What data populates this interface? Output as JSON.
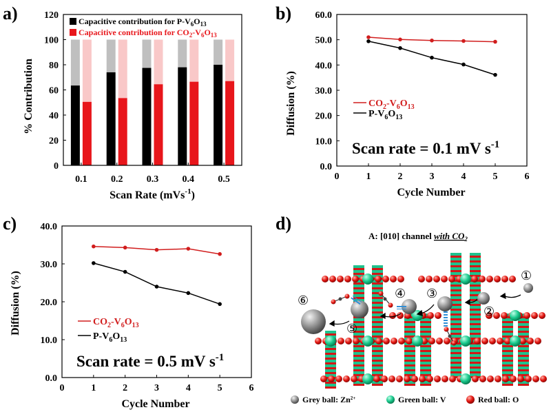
{
  "panels": {
    "a": "a)",
    "b": "b)",
    "c": "c)",
    "d": "d)"
  },
  "chart_data": [
    {
      "id": "a",
      "type": "bar",
      "stacked_to": 100,
      "categories": [
        "0.1",
        "0.2",
        "0.3",
        "0.4",
        "0.5"
      ],
      "series": [
        {
          "name": "Capacitive contribution for P-V6O13",
          "values": [
            63.5,
            74,
            77.5,
            78,
            80
          ],
          "color": "#000000",
          "rest_color": "#bfbfbf"
        },
        {
          "name": "Capacitive contribution for CO2-V6O13",
          "values": [
            50.5,
            53.5,
            64.5,
            66.5,
            67
          ],
          "color": "#e8161b",
          "rest_color": "#f9c8c8"
        }
      ],
      "legend": [
        {
          "prefix": "Capacitive contribution  for P-V",
          "sub1": "6",
          "mid": "O",
          "sub2": "13",
          "color": "#000000"
        },
        {
          "prefix": "Capacitive contribution  for CO",
          "sub0": "2",
          "mid0": "-V",
          "sub1": "6",
          "mid": "O",
          "sub2": "13",
          "color": "#e8161b"
        }
      ],
      "ylim": [
        0,
        120
      ],
      "yticks": [
        "0",
        "20",
        "40",
        "60",
        "80",
        "100",
        "120"
      ],
      "xlabel": "Scan Rate (mVs",
      "xlabel_sup": "-1",
      "xlabel_end": ")",
      "ylabel": "% Contribution"
    },
    {
      "id": "b",
      "type": "line",
      "x": [
        1,
        2,
        3,
        4,
        5
      ],
      "series": [
        {
          "name": "CO2-V6O13",
          "values": [
            51.0,
            50.1,
            49.7,
            49.5,
            49.2
          ],
          "color": "#d11d1d"
        },
        {
          "name": "P-V6O13",
          "values": [
            49.4,
            46.7,
            42.9,
            40.2,
            36.1
          ],
          "color": "#000000"
        }
      ],
      "xlim": [
        0,
        6
      ],
      "ylim": [
        0,
        60
      ],
      "xticks": [
        "0",
        "1",
        "2",
        "3",
        "4",
        "5",
        "6"
      ],
      "yticks": [
        "0.0",
        "10.0",
        "20.0",
        "30.0",
        "40.0",
        "50.0",
        "60.0"
      ],
      "xlabel": "Cycle Number",
      "ylabel": "Diffusion (%)",
      "legend": [
        {
          "pre": "CO",
          "s0": "2",
          "m0": "-V",
          "s1": "6",
          "m1": "O",
          "s2": "13",
          "color": "#d11d1d"
        },
        {
          "pre": "",
          "s0": "",
          "m0": "P-V",
          "s1": "6",
          "m1": "O",
          "s2": "13",
          "color": "#000000"
        }
      ],
      "annotation": "Scan rate = 0.1 mV s",
      "annotation_sup": "-1"
    },
    {
      "id": "c",
      "type": "line",
      "x": [
        1,
        2,
        3,
        4,
        5
      ],
      "series": [
        {
          "name": "CO2-V6O13",
          "values": [
            34.6,
            34.3,
            33.7,
            34.0,
            32.6
          ],
          "color": "#d11d1d"
        },
        {
          "name": "P-V6O13",
          "values": [
            30.2,
            27.9,
            24.0,
            22.3,
            19.4
          ],
          "color": "#000000"
        }
      ],
      "xlim": [
        0,
        6
      ],
      "ylim": [
        0,
        40
      ],
      "xticks": [
        "0",
        "1",
        "2",
        "3",
        "4",
        "5",
        "6"
      ],
      "yticks": [
        "0.0",
        "10.0",
        "20.0",
        "30.0",
        "40.0"
      ],
      "xlabel": "Cycle Number",
      "ylabel": "Diffusion (%)",
      "legend": [
        {
          "pre": "CO",
          "s0": "2",
          "m0": "-V",
          "s1": "6",
          "m1": "O",
          "s2": "13",
          "color": "#d11d1d"
        },
        {
          "pre": "",
          "s0": "",
          "m0": "P-V",
          "s1": "6",
          "m1": "O",
          "s2": "13",
          "color": "#000000"
        }
      ],
      "annotation": "Scan rate = 0.5 mV s",
      "annotation_sup": "-1"
    }
  ],
  "structure": {
    "title_prefix": "A: [010] channel ",
    "title_emph": "with CO",
    "title_emph_sub": "2",
    "steps": [
      "①",
      "②",
      "③",
      "④",
      "⑤",
      "⑥"
    ],
    "legend": [
      {
        "label": "Grey ball: Zn",
        "sup": "2+",
        "color": "#8c8c8c"
      },
      {
        "label": "Green ball: V",
        "sup": "",
        "color": "#18c98a"
      },
      {
        "label": "Red ball: O",
        "sup": "",
        "color": "#e01818"
      }
    ]
  }
}
